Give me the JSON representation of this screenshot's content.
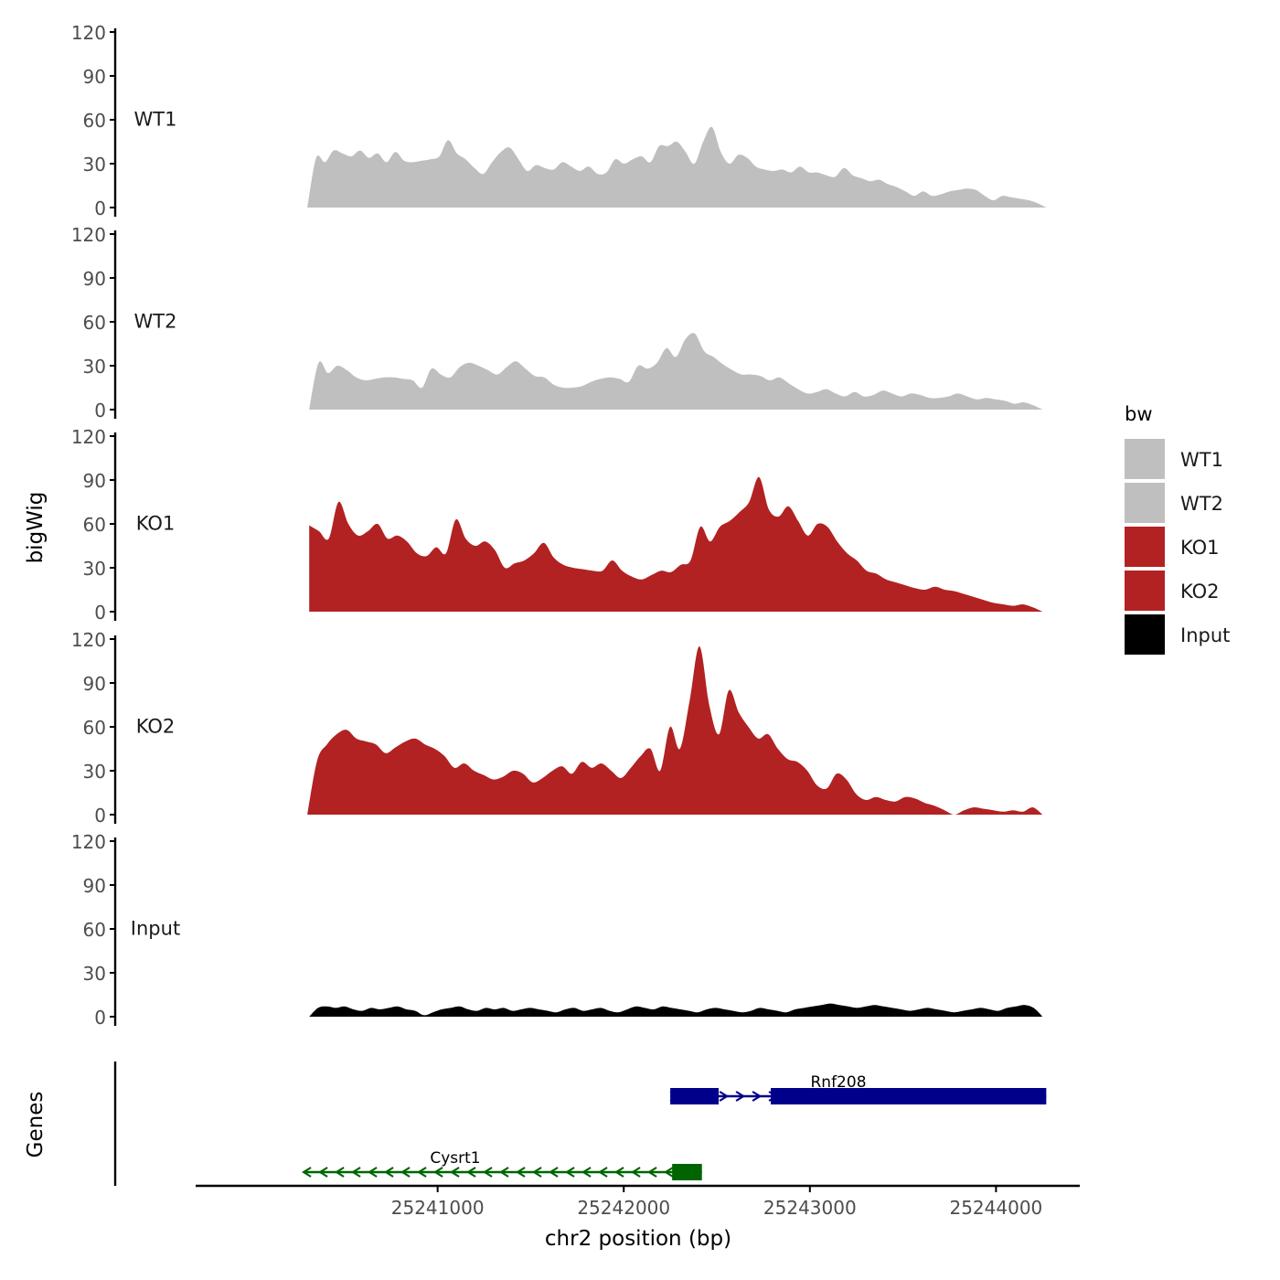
{
  "chart_data": {
    "type": "area",
    "ylabel": "bigWig",
    "xlabel": "chr2 position (bp)",
    "xlim": [
      25239700,
      25244450
    ],
    "ylim": [
      0,
      120
    ],
    "yticks": [
      0,
      30,
      60,
      90,
      120
    ],
    "xticks": [
      25241000,
      25242000,
      25243000,
      25244000
    ],
    "xtick_labels": [
      "25241000",
      "25242000",
      "25243000",
      "25244000"
    ],
    "legend": {
      "title": "bw",
      "position": "right",
      "entries": [
        {
          "label": "WT1",
          "color": "#bfbfbf"
        },
        {
          "label": "WT2",
          "color": "#bfbfbf"
        },
        {
          "label": "KO1",
          "color": "#b22222"
        },
        {
          "label": "KO2",
          "color": "#b22222"
        },
        {
          "label": "Input",
          "color": "#000000"
        }
      ]
    },
    "series": [
      {
        "name": "WT1",
        "color": "#bfbfbf",
        "x_start": 25240300,
        "x_end": 25244270,
        "values": [
          0,
          34,
          31,
          39,
          37,
          35,
          39,
          34,
          37,
          31,
          38,
          32,
          31,
          32,
          33,
          35,
          46,
          37,
          33,
          27,
          23,
          31,
          38,
          41,
          33,
          25,
          29,
          27,
          26,
          31,
          28,
          25,
          28,
          23,
          24,
          33,
          30,
          33,
          35,
          31,
          42,
          42,
          45,
          38,
          30,
          45,
          55,
          38,
          30,
          36,
          34,
          28,
          26,
          25,
          26,
          24,
          28,
          24,
          24,
          22,
          21,
          27,
          22,
          20,
          18,
          19,
          16,
          14,
          11,
          8,
          11,
          8,
          9,
          11,
          12,
          13,
          12,
          8,
          5,
          8,
          7,
          6,
          5,
          3,
          0
        ]
      },
      {
        "name": "WT2",
        "color": "#bfbfbf",
        "x_start": 25240310,
        "x_end": 25244250,
        "values": [
          0,
          32,
          25,
          30,
          27,
          22,
          20,
          21,
          22,
          22,
          21,
          20,
          15,
          28,
          24,
          22,
          29,
          32,
          30,
          27,
          24,
          29,
          33,
          28,
          23,
          22,
          17,
          15,
          15,
          16,
          19,
          21,
          22,
          21,
          19,
          30,
          28,
          32,
          42,
          36,
          48,
          52,
          40,
          36,
          31,
          27,
          24,
          24,
          23,
          20,
          22,
          18,
          14,
          11,
          12,
          14,
          11,
          9,
          12,
          9,
          10,
          13,
          11,
          9,
          11,
          10,
          8,
          8,
          9,
          11,
          9,
          7,
          8,
          7,
          6,
          4,
          5,
          3,
          0
        ]
      },
      {
        "name": "KO1",
        "color": "#b22222",
        "x_start": 25240310,
        "x_end": 25244250,
        "values": [
          59,
          55,
          50,
          75,
          60,
          52,
          55,
          60,
          50,
          52,
          48,
          40,
          38,
          44,
          40,
          63,
          50,
          45,
          48,
          42,
          30,
          33,
          35,
          40,
          47,
          37,
          32,
          30,
          29,
          28,
          28,
          35,
          28,
          24,
          22,
          25,
          28,
          27,
          32,
          35,
          58,
          48,
          58,
          62,
          68,
          75,
          92,
          70,
          65,
          72,
          62,
          52,
          60,
          58,
          48,
          40,
          35,
          28,
          26,
          22,
          20,
          18,
          16,
          15,
          17,
          15,
          14,
          12,
          10,
          8,
          6,
          5,
          4,
          5,
          3,
          0
        ]
      },
      {
        "name": "KO2",
        "color": "#b22222",
        "x_start": 25240300,
        "x_end": 25244250,
        "values": [
          0,
          37,
          48,
          55,
          58,
          52,
          50,
          48,
          42,
          46,
          50,
          52,
          48,
          45,
          40,
          32,
          35,
          30,
          27,
          24,
          26,
          30,
          28,
          22,
          25,
          30,
          33,
          28,
          36,
          32,
          35,
          30,
          25,
          32,
          40,
          45,
          30,
          60,
          45,
          78,
          115,
          75,
          55,
          85,
          70,
          60,
          52,
          55,
          45,
          38,
          36,
          30,
          20,
          18,
          28,
          24,
          14,
          10,
          12,
          10,
          9,
          12,
          11,
          8,
          6,
          3,
          0,
          3,
          5,
          4,
          3,
          2,
          3,
          2,
          5,
          0
        ]
      },
      {
        "name": "Input",
        "color": "#000000",
        "x_start": 25240310,
        "x_end": 25244250,
        "values": [
          0,
          6,
          7,
          6,
          7,
          5,
          4,
          6,
          5,
          6,
          7,
          5,
          4,
          1,
          3,
          5,
          6,
          7,
          5,
          4,
          6,
          5,
          6,
          4,
          5,
          6,
          5,
          4,
          3,
          5,
          6,
          4,
          5,
          6,
          4,
          3,
          5,
          7,
          6,
          5,
          7,
          6,
          5,
          4,
          3,
          5,
          6,
          5,
          4,
          3,
          4,
          6,
          5,
          4,
          3,
          5,
          6,
          7,
          8,
          9,
          8,
          7,
          6,
          7,
          8,
          7,
          6,
          5,
          4,
          5,
          6,
          5,
          4,
          3,
          4,
          5,
          6,
          5,
          4,
          6,
          7,
          8,
          6,
          0
        ]
      }
    ],
    "genes": {
      "ylabel": "Genes",
      "items": [
        {
          "name": "Rnf208",
          "strand": "+",
          "color": "#00008b",
          "start": 25242250,
          "end": 25244270,
          "exons": [
            [
              25242250,
              25242510
            ],
            [
              25242790,
              25244270
            ]
          ]
        },
        {
          "name": "Cysrt1",
          "strand": "-",
          "color": "#006400",
          "start": 25240280,
          "end": 25242420,
          "exons": [
            [
              25242260,
              25242420
            ]
          ]
        }
      ]
    }
  }
}
